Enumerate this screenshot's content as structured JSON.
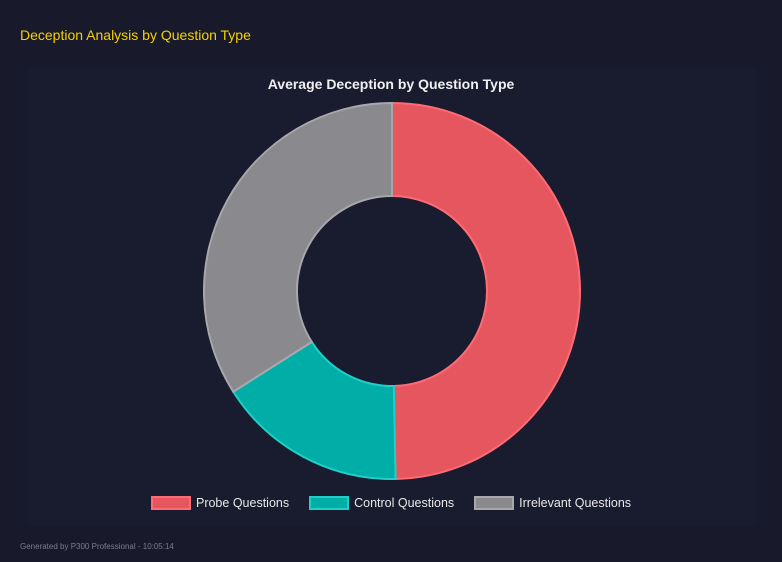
{
  "header": {
    "title": "Deception Analysis by Question Type"
  },
  "chart_data": {
    "type": "pie",
    "variant": "doughnut",
    "title": "Average Deception by Question Type",
    "categories": [
      "Probe Questions",
      "Control Questions",
      "Irrelevant Questions"
    ],
    "values": [
      49.7,
      16.3,
      34.0
    ],
    "colors": [
      "#e5565f",
      "#00aea7",
      "#8a8a8e"
    ],
    "border_colors": [
      "#ff6b74",
      "#1fd0c8",
      "#a8a8ac"
    ],
    "legend_position": "bottom"
  },
  "footer": {
    "text": "Generated by P300 Professional - 10:05:14"
  }
}
